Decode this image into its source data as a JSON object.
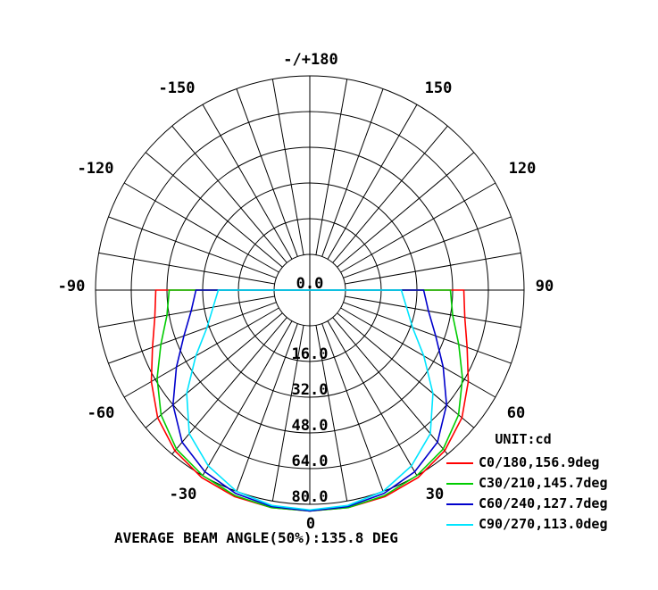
{
  "chart_data": {
    "type": "polar",
    "unit_label": "UNIT:cd",
    "footer": "AVERAGE BEAM ANGLE(50%):135.8 DEG",
    "angle_labels": [
      {
        "angle": 180,
        "text": "-/+180"
      },
      {
        "angle": -150,
        "text": "-150"
      },
      {
        "angle": 150,
        "text": "150"
      },
      {
        "angle": -120,
        "text": "-120"
      },
      {
        "angle": 120,
        "text": "120"
      },
      {
        "angle": -90,
        "text": "-90"
      },
      {
        "angle": 90,
        "text": "90"
      },
      {
        "angle": -60,
        "text": "-60"
      },
      {
        "angle": 60,
        "text": "60"
      },
      {
        "angle": -30,
        "text": "-30"
      },
      {
        "angle": 30,
        "text": "30"
      },
      {
        "angle": 0,
        "text": "0"
      }
    ],
    "radial_ticks": [
      "0.0",
      "16.0",
      "32.0",
      "48.0",
      "64.0",
      "80.0"
    ],
    "r_max": 80,
    "series": [
      {
        "name": "C0/180,156.9deg",
        "color": "#ff0000",
        "points": [
          [
            -90,
            53
          ],
          [
            -80,
            54.5
          ],
          [
            -70,
            59
          ],
          [
            -60,
            66
          ],
          [
            -50,
            73
          ],
          [
            -40,
            78
          ],
          [
            -30,
            81
          ],
          [
            -20,
            82.5
          ],
          [
            -10,
            83
          ],
          [
            0,
            83
          ],
          [
            10,
            83
          ],
          [
            20,
            82.5
          ],
          [
            30,
            81
          ],
          [
            40,
            78
          ],
          [
            50,
            73
          ],
          [
            60,
            66
          ],
          [
            70,
            59
          ],
          [
            80,
            54.5
          ],
          [
            90,
            53
          ]
        ]
      },
      {
        "name": "C30/210,145.7deg",
        "color": "#00cc00",
        "points": [
          [
            -90,
            47
          ],
          [
            -80,
            49
          ],
          [
            -70,
            55
          ],
          [
            -60,
            63
          ],
          [
            -50,
            71
          ],
          [
            -40,
            77
          ],
          [
            -30,
            80
          ],
          [
            -20,
            82
          ],
          [
            -10,
            83
          ],
          [
            0,
            83
          ],
          [
            10,
            83
          ],
          [
            20,
            82
          ],
          [
            30,
            80
          ],
          [
            40,
            77
          ],
          [
            50,
            71
          ],
          [
            60,
            63
          ],
          [
            70,
            55
          ],
          [
            80,
            49
          ],
          [
            90,
            47
          ]
        ]
      },
      {
        "name": "C60/240,127.7deg",
        "color": "#0000cc",
        "points": [
          [
            -90,
            35
          ],
          [
            -80,
            38
          ],
          [
            -70,
            44
          ],
          [
            -60,
            53
          ],
          [
            -50,
            64
          ],
          [
            -40,
            73
          ],
          [
            -30,
            78
          ],
          [
            -20,
            81
          ],
          [
            -10,
            82.5
          ],
          [
            0,
            83
          ],
          [
            10,
            82.5
          ],
          [
            20,
            81
          ],
          [
            30,
            78
          ],
          [
            40,
            73
          ],
          [
            50,
            64
          ],
          [
            60,
            53
          ],
          [
            70,
            44
          ],
          [
            80,
            38
          ],
          [
            90,
            35
          ]
        ]
      },
      {
        "name": "C90/270,113.0deg",
        "color": "#00e5ff",
        "points": [
          [
            -90,
            25
          ],
          [
            -80,
            28
          ],
          [
            -70,
            33
          ],
          [
            -60,
            43
          ],
          [
            -50,
            56
          ],
          [
            -40,
            68
          ],
          [
            -30,
            75
          ],
          [
            -20,
            80
          ],
          [
            -10,
            82
          ],
          [
            0,
            82.5
          ],
          [
            10,
            82
          ],
          [
            20,
            80
          ],
          [
            30,
            75
          ],
          [
            40,
            68
          ],
          [
            50,
            56
          ],
          [
            60,
            43
          ],
          [
            70,
            33
          ],
          [
            80,
            28
          ],
          [
            90,
            25
          ]
        ]
      }
    ]
  }
}
